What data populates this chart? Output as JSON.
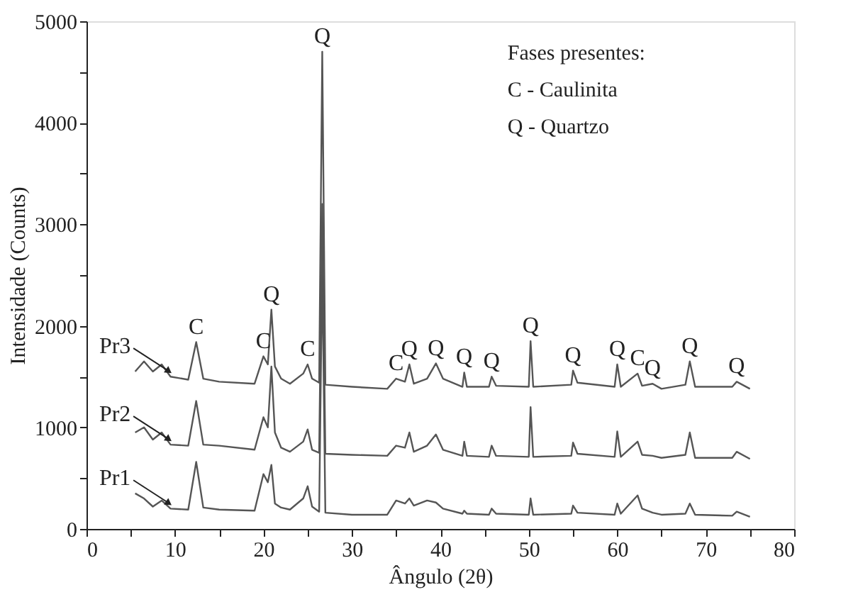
{
  "chart_data": {
    "type": "line",
    "xlabel": "Ângulo (2θ)",
    "ylabel": "Intensidade (Counts)",
    "xlim": [
      0,
      80
    ],
    "ylim": [
      0,
      5000
    ],
    "xticks": [
      0,
      {
        "value": 5,
        "label": null
      },
      10,
      {
        "value": 15,
        "label": null
      },
      20,
      {
        "value": 25,
        "label": null
      },
      30,
      {
        "value": 35,
        "label": null
      },
      40,
      {
        "value": 45,
        "label": null
      },
      50,
      {
        "value": 55,
        "label": null
      },
      60,
      {
        "value": 65,
        "label": null
      },
      70,
      {
        "value": 75,
        "label": null
      },
      80
    ],
    "yticks": [
      0,
      {
        "value": 500,
        "label": null
      },
      1000,
      {
        "value": 1500,
        "label": null
      },
      2000,
      {
        "value": 2500,
        "label": null
      },
      3000,
      {
        "value": 3500,
        "label": null
      },
      4000,
      {
        "value": 4500,
        "label": null
      },
      5000
    ],
    "grid": false,
    "legend": false,
    "marker": "none",
    "line_style": "solid",
    "x": [
      5.5,
      6.5,
      7.5,
      8.5,
      9.5,
      11.5,
      12.4,
      13.2,
      15,
      19,
      20,
      20.5,
      20.9,
      21.3,
      22,
      23,
      24.5,
      25,
      25.5,
      26.3,
      26.65,
      27,
      30,
      34,
      35,
      36,
      36.5,
      37,
      38.5,
      39.5,
      40.3,
      42.5,
      42.7,
      43,
      45.5,
      45.8,
      46.3,
      50,
      50.2,
      50.5,
      54.8,
      55,
      55.5,
      59.7,
      60,
      60.4,
      62.3,
      62.8,
      64,
      65,
      67.7,
      68.2,
      68.8,
      73,
      73.5,
      75
    ],
    "series": [
      {
        "name": "Pr1",
        "color": "#555555",
        "values": [
          350,
          300,
          220,
          280,
          200,
          190,
          660,
          210,
          190,
          180,
          540,
          460,
          630,
          250,
          210,
          190,
          300,
          420,
          220,
          170,
          2600,
          160,
          140,
          140,
          280,
          250,
          300,
          230,
          280,
          260,
          200,
          150,
          180,
          150,
          140,
          200,
          150,
          140,
          300,
          140,
          150,
          230,
          160,
          140,
          250,
          150,
          330,
          200,
          160,
          140,
          150,
          250,
          140,
          130,
          170,
          120
        ]
      },
      {
        "name": "Pr2",
        "color": "#555555",
        "values": [
          950,
          1000,
          880,
          950,
          830,
          820,
          1260,
          830,
          820,
          780,
          1100,
          1000,
          1600,
          950,
          800,
          760,
          860,
          980,
          780,
          750,
          3200,
          740,
          730,
          720,
          820,
          800,
          950,
          760,
          820,
          930,
          780,
          720,
          860,
          720,
          710,
          820,
          720,
          710,
          1200,
          710,
          720,
          850,
          740,
          710,
          960,
          710,
          860,
          730,
          720,
          700,
          730,
          950,
          700,
          700,
          760,
          690
        ]
      },
      {
        "name": "Pr3",
        "color": "#555555",
        "values": [
          1550,
          1650,
          1550,
          1620,
          1500,
          1470,
          1840,
          1480,
          1450,
          1430,
          1700,
          1620,
          2160,
          1600,
          1480,
          1430,
          1530,
          1620,
          1480,
          1440,
          4700,
          1420,
          1400,
          1380,
          1480,
          1450,
          1620,
          1430,
          1480,
          1630,
          1480,
          1400,
          1540,
          1400,
          1400,
          1500,
          1410,
          1400,
          1850,
          1400,
          1420,
          1560,
          1440,
          1400,
          1620,
          1400,
          1530,
          1410,
          1430,
          1380,
          1420,
          1650,
          1400,
          1400,
          1450,
          1380
        ]
      }
    ],
    "annotations": [
      "Fases presentes:",
      "C - Caulinita",
      "Q - Quartzo",
      {
        "text": "C",
        "x": 12.4,
        "y": 1840
      },
      {
        "text": "C",
        "x": 20,
        "y": 1700
      },
      {
        "text": "Q",
        "x": 20.9,
        "y": 2160
      },
      {
        "text": "C",
        "x": 25,
        "y": 1620
      },
      {
        "text": "Q",
        "x": 26.65,
        "y": 4700
      },
      {
        "text": "C",
        "x": 35,
        "y": 1480
      },
      {
        "text": "Q",
        "x": 36.5,
        "y": 1620
      },
      {
        "text": "Q",
        "x": 39.5,
        "y": 1630
      },
      {
        "text": "Q",
        "x": 42.7,
        "y": 1540
      },
      {
        "text": "Q",
        "x": 45.8,
        "y": 1500
      },
      {
        "text": "Q",
        "x": 50.2,
        "y": 1850
      },
      {
        "text": "Q",
        "x": 55,
        "y": 1560
      },
      {
        "text": "Q",
        "x": 60,
        "y": 1620
      },
      {
        "text": "C",
        "x": 62.3,
        "y": 1530
      },
      {
        "text": "Q",
        "x": 64,
        "y": 1430
      },
      {
        "text": "Q",
        "x": 68.2,
        "y": 1650
      },
      {
        "text": "Q",
        "x": 73.5,
        "y": 1450
      }
    ]
  }
}
